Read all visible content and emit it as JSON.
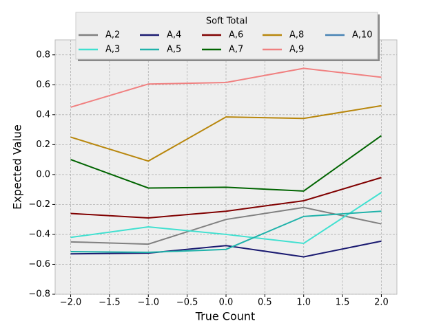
{
  "chart_data": {
    "type": "line",
    "legend_title": "Soft Total",
    "xlabel": "True Count",
    "ylabel": "Expected Value",
    "x": [
      -2,
      -1,
      0,
      1,
      2
    ],
    "series": [
      {
        "name": "A,2",
        "color": "#808080",
        "values": [
          -0.45,
          -0.465,
          -0.3,
          -0.22,
          -0.33
        ]
      },
      {
        "name": "A,3",
        "color": "#40e0d0",
        "values": [
          -0.42,
          -0.35,
          -0.4,
          -0.46,
          -0.12
        ]
      },
      {
        "name": "A,4",
        "color": "#191970",
        "values": [
          -0.53,
          -0.525,
          -0.475,
          -0.55,
          -0.445
        ]
      },
      {
        "name": "A,5",
        "color": "#20b2aa",
        "values": [
          -0.515,
          -0.52,
          -0.5,
          -0.28,
          -0.245
        ]
      },
      {
        "name": "A,6",
        "color": "#800000",
        "values": [
          -0.26,
          -0.29,
          -0.245,
          -0.175,
          -0.02
        ]
      },
      {
        "name": "A,7",
        "color": "#006400",
        "values": [
          0.1,
          -0.09,
          -0.085,
          -0.11,
          0.26
        ]
      },
      {
        "name": "A,8",
        "color": "#b8860b",
        "values": [
          0.25,
          0.09,
          0.385,
          0.375,
          0.46
        ]
      },
      {
        "name": "A,9",
        "color": "#f08080",
        "values": [
          0.45,
          0.605,
          0.615,
          0.71,
          0.65
        ]
      },
      {
        "name": "A,10",
        "color": "#4682b4",
        "values": [
          null,
          null,
          null,
          null,
          null
        ]
      }
    ],
    "xlim": [
      -2.2,
      2.2
    ],
    "xticks": [
      {
        "value": -2,
        "label": "−2.0"
      },
      {
        "value": -1.5,
        "label": "−1.5"
      },
      {
        "value": -1,
        "label": "−1.0"
      },
      {
        "value": -0.5,
        "label": "−0.5"
      },
      {
        "value": 0,
        "label": "0.0"
      },
      {
        "value": 0.5,
        "label": "0.5"
      },
      {
        "value": 1,
        "label": "1.0"
      },
      {
        "value": 1.5,
        "label": "1.5"
      },
      {
        "value": 2,
        "label": "2.0"
      }
    ],
    "ylim": [
      -0.8,
      0.9
    ],
    "yticks": [
      {
        "value": -0.8,
        "label": "−0.8"
      },
      {
        "value": -0.6,
        "label": "−0.6"
      },
      {
        "value": -0.4,
        "label": "−0.4"
      },
      {
        "value": -0.2,
        "label": "−0.2"
      },
      {
        "value": 0,
        "label": "0.0"
      },
      {
        "value": 0.2,
        "label": "0.2"
      },
      {
        "value": 0.4,
        "label": "0.4"
      },
      {
        "value": 0.6,
        "label": "0.6"
      },
      {
        "value": 0.8,
        "label": "0.8"
      }
    ],
    "grid": true,
    "legend": "upper center"
  }
}
